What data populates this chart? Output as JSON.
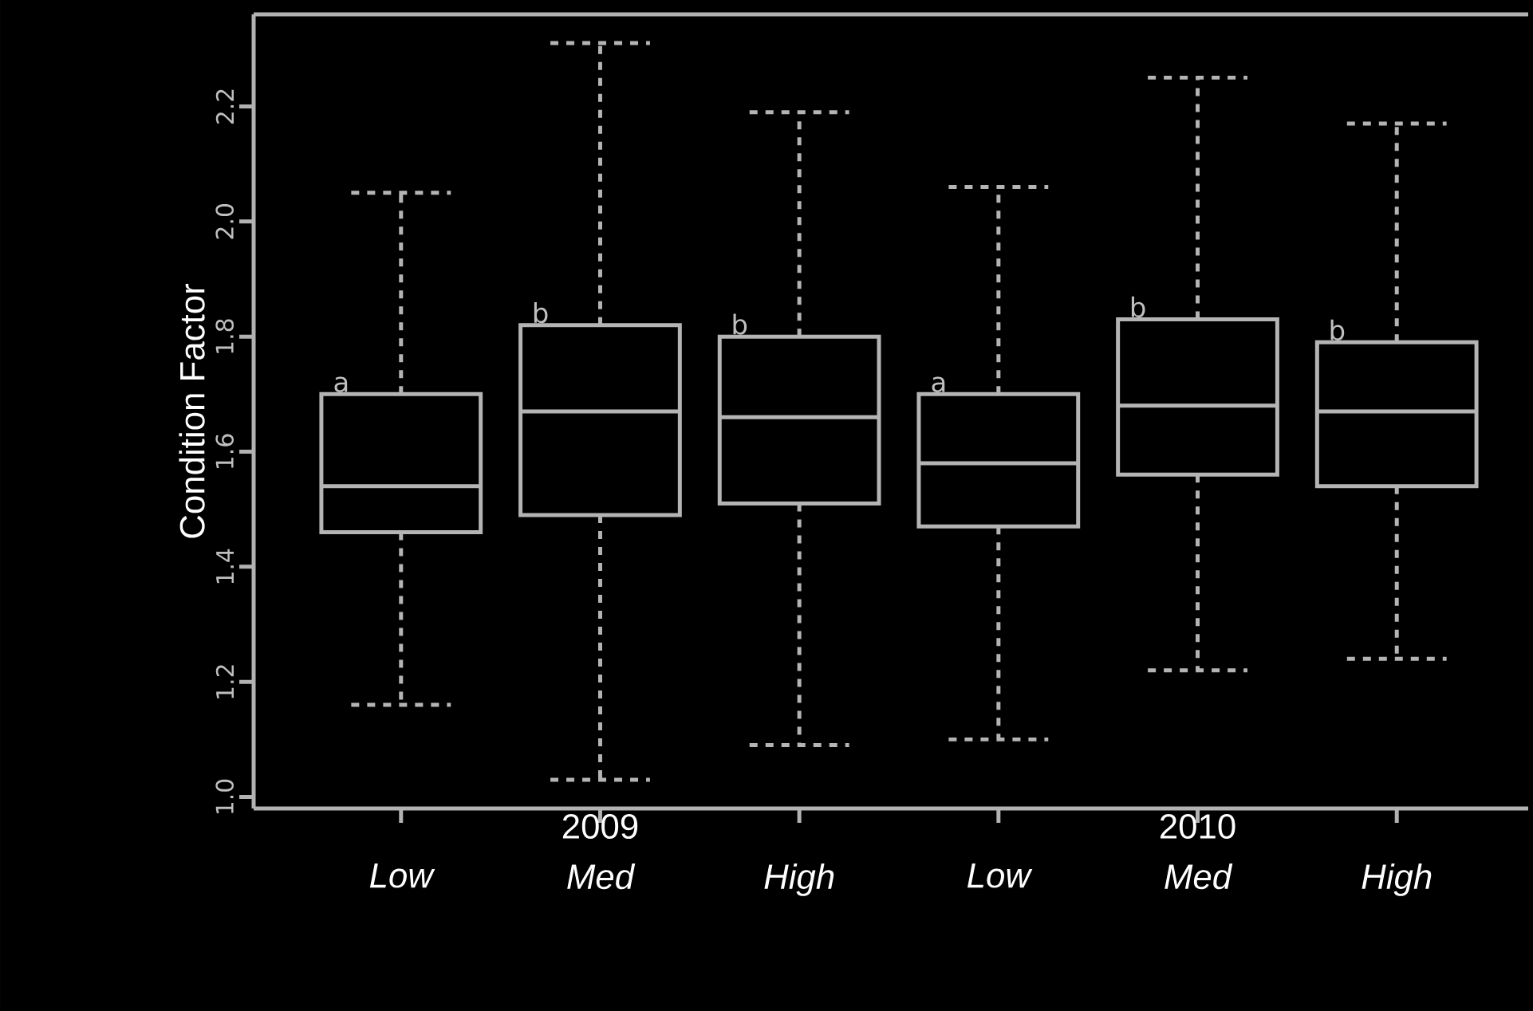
{
  "chart_data": {
    "type": "box",
    "ylabel": "Condition Factor",
    "categories": [
      "Low",
      "Med",
      "High",
      "Low",
      "Med",
      "High"
    ],
    "series": [
      {
        "color": "#b4b4b4",
        "boxes": [
          {
            "low": 1.16,
            "q1": 1.46,
            "median": 1.54,
            "q3": 1.7,
            "high": 2.05
          },
          {
            "low": 1.03,
            "q1": 1.49,
            "median": 1.67,
            "q3": 1.82,
            "high": 2.31
          },
          {
            "low": 1.09,
            "q1": 1.51,
            "median": 1.66,
            "q3": 1.8,
            "high": 2.19
          },
          {
            "low": 1.1,
            "q1": 1.47,
            "median": 1.58,
            "q3": 1.7,
            "high": 2.06
          },
          {
            "low": 1.22,
            "q1": 1.56,
            "median": 1.68,
            "q3": 1.83,
            "high": 2.25
          },
          {
            "low": 1.24,
            "q1": 1.54,
            "median": 1.67,
            "q3": 1.79,
            "high": 2.17
          }
        ]
      }
    ],
    "ylim": [
      0.98,
      2.36
    ],
    "yticks": [
      {
        "value": 1.0,
        "label": "1.0"
      },
      {
        "value": 1.2,
        "label": "1.2"
      },
      {
        "value": 1.4,
        "label": "1.4"
      },
      {
        "value": 1.6,
        "label": "1.6"
      },
      {
        "value": 1.8,
        "label": "1.8"
      },
      {
        "value": 2.0,
        "label": "2.0"
      },
      {
        "value": 2.2,
        "label": "2.2"
      }
    ],
    "annotations": [
      "a",
      "b",
      "b",
      "a",
      "b",
      "b",
      "2009",
      "2010"
    ]
  }
}
